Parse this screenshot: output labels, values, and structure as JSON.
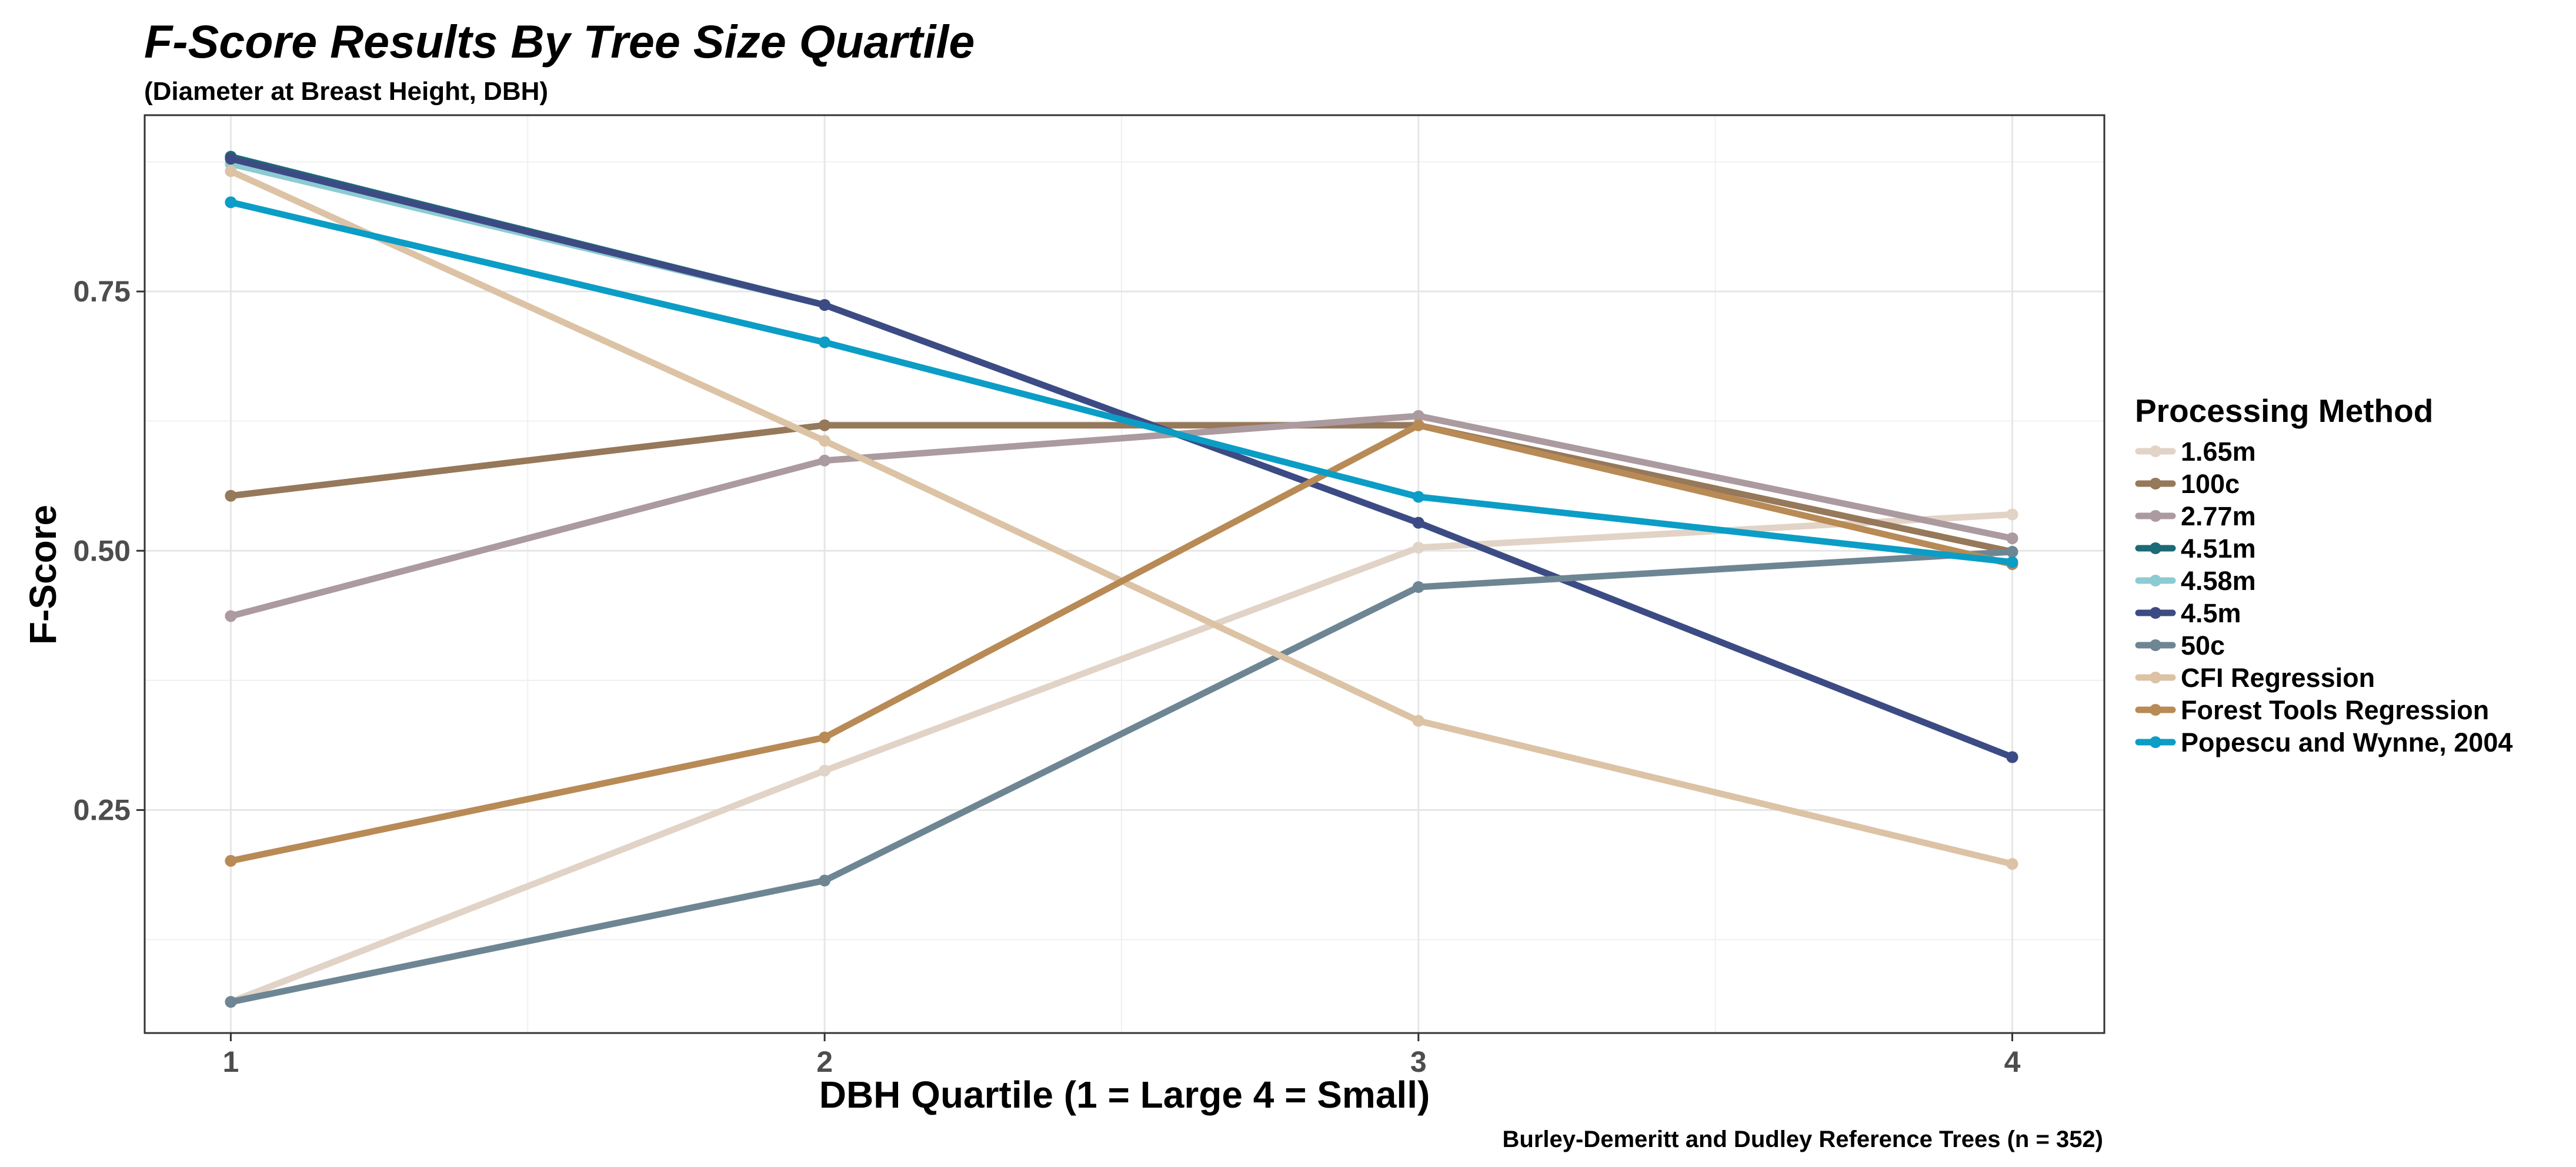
{
  "chart_data": {
    "type": "line",
    "title": "F-Score Results By Tree Size Quartile",
    "subtitle": "(Diameter at Breast Height, DBH)",
    "xlabel": "DBH Quartile (1 = Large  4 = Small)",
    "ylabel": "F-Score",
    "caption": "Burley-Demeritt and Dudley Reference Trees (n = 352)",
    "x": [
      1,
      2,
      3,
      4
    ],
    "x_tick_labels": [
      "1",
      "2",
      "3",
      "4"
    ],
    "xlim": [
      0.855,
      4.155
    ],
    "y_ticks": [
      0.25,
      0.5,
      0.75
    ],
    "y_tick_labels": [
      "0.25",
      "0.50",
      "0.75"
    ],
    "ylim": [
      0.035,
      0.92
    ],
    "grid": true,
    "legend": {
      "title": "Processing Method",
      "position": "right"
    },
    "series": [
      {
        "name": "1.65m",
        "color": "#e2d3c7",
        "values": [
          0.065,
          0.288,
          0.503,
          0.535
        ]
      },
      {
        "name": "100c",
        "color": "#96785a",
        "values": [
          0.553,
          0.621,
          0.621,
          0.499
        ]
      },
      {
        "name": "2.77m",
        "color": "#ab9a9f",
        "values": [
          0.437,
          0.587,
          0.63,
          0.512
        ]
      },
      {
        "name": "4.51m",
        "color": "#1c6a78",
        "values": [
          0.88,
          0.737,
          0.527,
          0.301
        ]
      },
      {
        "name": "4.58m",
        "color": "#8ccbd2",
        "values": [
          0.873,
          0.737,
          0.527,
          0.301
        ]
      },
      {
        "name": "4.5m",
        "color": "#3d4b84",
        "values": [
          0.878,
          0.737,
          0.527,
          0.301
        ]
      },
      {
        "name": "50c",
        "color": "#6e8693",
        "values": [
          0.065,
          0.182,
          0.465,
          0.499
        ]
      },
      {
        "name": "CFI Regression",
        "color": "#dcc3a5",
        "values": [
          0.866,
          0.606,
          0.336,
          0.198
        ]
      },
      {
        "name": "Forest Tools Regression",
        "color": "#b88a55",
        "values": [
          0.201,
          0.32,
          0.621,
          0.487
        ]
      },
      {
        "name": "Popescu and Wynne, 2004",
        "color": "#0b9dc6",
        "values": [
          0.836,
          0.701,
          0.552,
          0.489
        ]
      }
    ]
  }
}
